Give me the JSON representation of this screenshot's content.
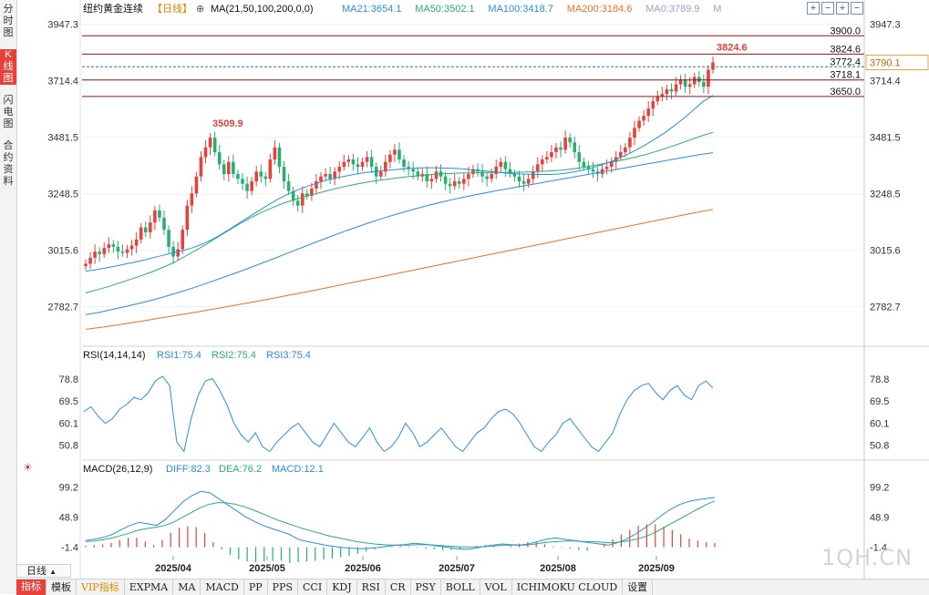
{
  "sidebar": {
    "tabs": [
      {
        "label": "分时图",
        "active": false
      },
      {
        "label": "K线图",
        "active": true
      },
      {
        "label": "闪电图",
        "active": false
      },
      {
        "label": "合约资料",
        "active": false
      }
    ]
  },
  "header": {
    "title": "纽约黄金连续",
    "period_tag": "【日线】",
    "settings_glyph": "⊕",
    "ma_label": "MA(21,50,100,200,0,0)",
    "ma_values": [
      {
        "text": "MA21:3654.1",
        "color": "#2a8ee0"
      },
      {
        "text": "MA50:3502.1",
        "color": "#26b070"
      },
      {
        "text": "MA100:3418.7",
        "color": "#2a8ee0"
      },
      {
        "text": "MA200:3184.6",
        "color": "#f07020"
      },
      {
        "text": "MA0:3789.9",
        "color": "#9aa0d0"
      },
      {
        "text": "M",
        "color": "#9aa0d0"
      }
    ]
  },
  "toolbar": {
    "buttons": [
      "+",
      "−",
      "+",
      "−"
    ]
  },
  "main_axis": {
    "min": 2650,
    "max": 3980,
    "ticks": [
      "3947.3",
      "3714.4",
      "3481.5",
      "3248.5",
      "3015.6",
      "2782.7"
    ]
  },
  "levels": [
    {
      "value": 3900.0,
      "label": "3900.0",
      "style": "solid"
    },
    {
      "value": 3824.6,
      "label": "3824.6",
      "style": "solid"
    },
    {
      "value": 3772.4,
      "label": "3772.4",
      "style": "dashed"
    },
    {
      "value": 3718.1,
      "label": "3718.1",
      "style": "solid"
    },
    {
      "value": 3650.0,
      "label": "3650.0",
      "style": "solid"
    }
  ],
  "annotations": {
    "high": "3824.6",
    "swing_high": "3509.9",
    "current_price": "3790.1"
  },
  "rsi": {
    "label": "RSI(14,14,14)",
    "values": [
      "RSI1:75.4",
      "RSI2:75.4",
      "RSI3:75.4"
    ],
    "axis": {
      "min": 42,
      "max": 85
    },
    "ticks": [
      "78.8",
      "69.5",
      "60.1",
      "50.8"
    ]
  },
  "macd": {
    "label": "MACD(26,12,9)",
    "values": [
      "DIFF:82.3",
      "DEA:76.2",
      "MACD:12.1"
    ],
    "axis": {
      "min": -25,
      "max": 120
    },
    "ticks": [
      "99.2",
      "48.9",
      "-1.4"
    ]
  },
  "x_labels": [
    "2025/04",
    "2025/05",
    "2025/06",
    "2025/07",
    "2025/08",
    "2025/09"
  ],
  "period_button": "日线",
  "bottom_tabs": [
    "指标",
    "模板",
    "VIP指标",
    "EXPMA",
    "MA",
    "MACD",
    "PP",
    "PPS",
    "CCI",
    "KDJ",
    "RSI",
    "CR",
    "PSY",
    "BOLL",
    "VOL",
    "ICHIMOKU CLOUD",
    "设置"
  ],
  "watermark": "1QH.CN",
  "colors": {
    "up": "#e8413b",
    "down": "#26b070",
    "ma21": "#2a8ee0",
    "ma50": "#26b070",
    "ma100": "#2a8ee0",
    "ma200": "#f07020",
    "rsi": "#2a8ee0",
    "diff": "#2a8ee0",
    "dea": "#26b070"
  },
  "chart_data": {
    "type": "candlestick",
    "series_note": "",
    "closes": [
      2960,
      2985,
      3010,
      3000,
      3025,
      3040,
      3030,
      3010,
      3005,
      3020,
      3035,
      3060,
      3110,
      3090,
      3130,
      3180,
      3150,
      3100,
      3030,
      2990,
      3020,
      3100,
      3200,
      3250,
      3320,
      3400,
      3440,
      3480,
      3420,
      3370,
      3330,
      3380,
      3330,
      3310,
      3290,
      3260,
      3300,
      3340,
      3320,
      3310,
      3390,
      3440,
      3360,
      3300,
      3260,
      3220,
      3200,
      3250,
      3240,
      3270,
      3300,
      3320,
      3330,
      3310,
      3340,
      3360,
      3380,
      3390,
      3370,
      3360,
      3380,
      3400,
      3360,
      3320,
      3340,
      3380,
      3410,
      3430,
      3390,
      3360,
      3350,
      3340,
      3320,
      3330,
      3300,
      3310,
      3340,
      3320,
      3290,
      3280,
      3300,
      3290,
      3310,
      3330,
      3350,
      3340,
      3320,
      3310,
      3330,
      3360,
      3380,
      3350,
      3330,
      3320,
      3300,
      3290,
      3310,
      3340,
      3370,
      3390,
      3400,
      3420,
      3440,
      3430,
      3480,
      3460,
      3420,
      3380,
      3360,
      3350,
      3340,
      3330,
      3350,
      3360,
      3380,
      3400,
      3420,
      3440,
      3480,
      3520,
      3550,
      3570,
      3600,
      3630,
      3650,
      3660,
      3680,
      3670,
      3700,
      3720,
      3690,
      3700,
      3730,
      3710,
      3690,
      3760,
      3790
    ],
    "ma21": [
      2930,
      2935,
      2942,
      2950,
      2958,
      2966,
      2975,
      2985,
      2995,
      3005,
      3014,
      3025,
      3040,
      3058,
      3080,
      3105,
      3130,
      3155,
      3180,
      3205,
      3228,
      3248,
      3265,
      3280,
      3293,
      3305,
      3315,
      3322,
      3330,
      3336,
      3340,
      3345,
      3348,
      3352,
      3354,
      3356,
      3356,
      3355,
      3354,
      3352,
      3348,
      3344,
      3340,
      3336,
      3333,
      3330,
      3329,
      3328,
      3328,
      3330,
      3335,
      3342,
      3350,
      3362,
      3375,
      3390,
      3408,
      3428,
      3450,
      3475,
      3500,
      3530,
      3560,
      3595,
      3630,
      3654
    ],
    "ma50": [
      2840,
      2852,
      2865,
      2880,
      2895,
      2910,
      2926,
      2945,
      2965,
      2990,
      3015,
      3042,
      3070,
      3098,
      3125,
      3150,
      3172,
      3192,
      3210,
      3225,
      3238,
      3250,
      3262,
      3273,
      3283,
      3292,
      3300,
      3306,
      3312,
      3318,
      3322,
      3326,
      3330,
      3332,
      3334,
      3335,
      3336,
      3336,
      3336,
      3337,
      3338,
      3340,
      3342,
      3345,
      3350,
      3356,
      3364,
      3372,
      3381,
      3390,
      3400,
      3412,
      3425,
      3440,
      3456,
      3472,
      3488,
      3502
    ],
    "ma100": [
      2750,
      2760,
      2772,
      2785,
      2798,
      2812,
      2828,
      2845,
      2863,
      2882,
      2902,
      2922,
      2943,
      2964,
      2986,
      3008,
      3030,
      3052,
      3073,
      3094,
      3114,
      3133,
      3151,
      3168,
      3184,
      3199,
      3213,
      3226,
      3238,
      3249,
      3260,
      3270,
      3280,
      3290,
      3300,
      3310,
      3320,
      3330,
      3340,
      3350,
      3360,
      3370,
      3380,
      3390,
      3400,
      3410,
      3418
    ],
    "ma200": [
      2690,
      2700,
      2712,
      2724,
      2737,
      2750,
      2763,
      2777,
      2791,
      2805,
      2820,
      2835,
      2850,
      2866,
      2882,
      2898,
      2914,
      2930,
      2946,
      2962,
      2978,
      2994,
      3010,
      3026,
      3042,
      3058,
      3074,
      3090,
      3106,
      3122,
      3138,
      3154,
      3170,
      3184
    ],
    "rsi": [
      65,
      67,
      63,
      60,
      62,
      66,
      68,
      71,
      70,
      73,
      78,
      80,
      76,
      52,
      48,
      62,
      72,
      78,
      79,
      74,
      68,
      60,
      55,
      52,
      56,
      50,
      48,
      52,
      55,
      58,
      60,
      56,
      52,
      50,
      55,
      60,
      56,
      52,
      50,
      54,
      58,
      52,
      48,
      50,
      54,
      60,
      56,
      50,
      52,
      55,
      58,
      54,
      50,
      48,
      52,
      56,
      58,
      62,
      65,
      66,
      64,
      60,
      55,
      50,
      48,
      52,
      55,
      60,
      62,
      58,
      54,
      50,
      48,
      52,
      56,
      64,
      70,
      74,
      76,
      77,
      73,
      70,
      74,
      76,
      72,
      70,
      76,
      78,
      75
    ],
    "diff": [
      10,
      12,
      15,
      20,
      28,
      35,
      40,
      38,
      35,
      45,
      60,
      75,
      85,
      92,
      90,
      80,
      70,
      60,
      50,
      42,
      35,
      30,
      25,
      20,
      12,
      8,
      5,
      2,
      0,
      -2,
      -3,
      -4,
      -3,
      -2,
      0,
      2,
      3,
      5,
      4,
      2,
      0,
      -2,
      -4,
      -5,
      -3,
      0,
      2,
      4,
      3,
      2,
      4,
      8,
      12,
      14,
      12,
      10,
      8,
      6,
      4,
      2,
      6,
      12,
      20,
      30,
      40,
      52,
      62,
      70,
      75,
      78,
      80,
      82
    ],
    "dea": [
      8,
      9,
      11,
      14,
      18,
      22,
      27,
      30,
      32,
      35,
      40,
      48,
      56,
      64,
      70,
      73,
      73,
      71,
      67,
      62,
      56,
      50,
      44,
      39,
      34,
      29,
      25,
      21,
      17,
      14,
      11,
      8,
      6,
      4,
      3,
      2,
      2,
      2,
      3,
      3,
      2,
      1,
      0,
      -1,
      -1,
      -1,
      0,
      1,
      2,
      2,
      2,
      3,
      5,
      7,
      8,
      9,
      9,
      8,
      8,
      7,
      6,
      7,
      9,
      12,
      16,
      22,
      30,
      38,
      46,
      54,
      62,
      70,
      76
    ],
    "macd_hist": [
      4,
      6,
      8,
      12,
      20,
      26,
      26,
      16,
      6,
      20,
      40,
      54,
      58,
      56,
      40,
      14,
      -6,
      -22,
      -34,
      -40,
      -42,
      -40,
      -38,
      -38,
      -44,
      -42,
      -40,
      -38,
      -34,
      -32,
      -28,
      -24,
      -18,
      -12,
      -6,
      0,
      2,
      6,
      2,
      -2,
      -4,
      -6,
      -8,
      -8,
      -4,
      2,
      4,
      6,
      2,
      0,
      4,
      10,
      14,
      14,
      8,
      2,
      -2,
      -4,
      -8,
      -10,
      0,
      10,
      22,
      36,
      48,
      60,
      64,
      64,
      58,
      48,
      36,
      24,
      18,
      14,
      12
    ]
  }
}
